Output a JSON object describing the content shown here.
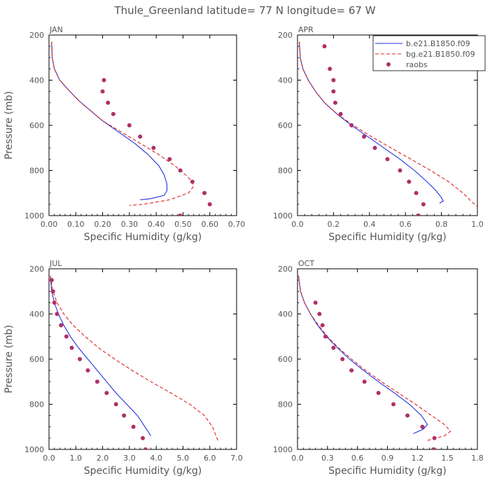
{
  "title": "Thule_Greenland  latitude= 77 N longitude= 67 W",
  "legend": {
    "entries": [
      {
        "label": "b.e21.B1850.f09",
        "color": "#2233dd",
        "style": "solid"
      },
      {
        "label": "bg.e21.B1850.f09",
        "color": "#dd2222",
        "style": "dashed"
      },
      {
        "label": "raobs",
        "color": "#b0306a",
        "style": "marker"
      }
    ]
  },
  "chart_data": [
    {
      "type": "line",
      "panel": "JAN",
      "xlabel": "Specific Humidity (g/kg)",
      "ylabel": "Pressure (mb)",
      "xlim": [
        0,
        0.7
      ],
      "ylim": [
        1000,
        200
      ],
      "xticks": [
        "0.00",
        "0.10",
        "0.20",
        "0.30",
        "0.40",
        "0.50",
        "0.60",
        "0.70"
      ],
      "xtick_values": [
        0,
        0.1,
        0.2,
        0.3,
        0.4,
        0.5,
        0.6,
        0.7
      ],
      "yticks": [
        "200",
        "400",
        "600",
        "800",
        "1000"
      ],
      "ytick_values": [
        200,
        400,
        600,
        800,
        1000
      ],
      "series": [
        {
          "name": "b.e21.B1850.f09",
          "x": [
            0.01,
            0.012,
            0.02,
            0.04,
            0.07,
            0.11,
            0.15,
            0.2,
            0.26,
            0.32,
            0.37,
            0.41,
            0.43,
            0.44,
            0.44,
            0.43,
            0.38,
            0.34
          ],
          "y": [
            230,
            300,
            350,
            400,
            440,
            490,
            530,
            580,
            630,
            680,
            730,
            780,
            820,
            860,
            890,
            910,
            925,
            930
          ]
        },
        {
          "name": "bg.e21.B1850.f09",
          "x": [
            0.01,
            0.012,
            0.02,
            0.04,
            0.07,
            0.11,
            0.15,
            0.2,
            0.27,
            0.34,
            0.41,
            0.47,
            0.51,
            0.535,
            0.54,
            0.52,
            0.45,
            0.35,
            0.3
          ],
          "y": [
            230,
            300,
            350,
            400,
            440,
            490,
            530,
            580,
            630,
            680,
            730,
            780,
            820,
            850,
            870,
            900,
            930,
            950,
            955
          ]
        },
        {
          "name": "raobs",
          "x": [
            0.205,
            0.2,
            0.22,
            0.24,
            0.3,
            0.34,
            0.39,
            0.45,
            0.49,
            0.535,
            0.58,
            0.6,
            0.49
          ],
          "y": [
            400,
            450,
            500,
            550,
            600,
            650,
            700,
            750,
            800,
            850,
            900,
            950,
            1000
          ]
        }
      ]
    },
    {
      "type": "line",
      "panel": "APR",
      "xlabel": "Specific Humidity (g/kg)",
      "ylabel": "",
      "xlim": [
        0,
        1.0
      ],
      "ylim": [
        1000,
        200
      ],
      "xticks": [
        "0.0",
        "0.2",
        "0.4",
        "0.6",
        "0.8",
        "1.0"
      ],
      "xtick_values": [
        0,
        0.2,
        0.4,
        0.6,
        0.8,
        1.0
      ],
      "yticks": [
        "200",
        "400",
        "600",
        "800",
        "1000"
      ],
      "ytick_values": [
        200,
        400,
        600,
        800,
        1000
      ],
      "series": [
        {
          "name": "b.e21.B1850.f09",
          "x": [
            0.01,
            0.015,
            0.03,
            0.06,
            0.1,
            0.15,
            0.22,
            0.3,
            0.39,
            0.48,
            0.57,
            0.65,
            0.72,
            0.77,
            0.8,
            0.81,
            0.79
          ],
          "y": [
            230,
            300,
            350,
            400,
            450,
            500,
            550,
            600,
            650,
            700,
            750,
            800,
            850,
            890,
            920,
            935,
            945
          ]
        },
        {
          "name": "bg.e21.B1850.f09",
          "x": [
            0.01,
            0.015,
            0.03,
            0.06,
            0.1,
            0.15,
            0.22,
            0.31,
            0.41,
            0.52,
            0.63,
            0.74,
            0.84,
            0.92,
            0.97,
            1.0
          ],
          "y": [
            230,
            300,
            350,
            400,
            450,
            500,
            550,
            600,
            650,
            700,
            750,
            800,
            850,
            900,
            940,
            960
          ]
        },
        {
          "name": "raobs",
          "x": [
            0.15,
            0.18,
            0.2,
            0.2,
            0.21,
            0.24,
            0.3,
            0.37,
            0.43,
            0.5,
            0.57,
            0.62,
            0.66,
            0.7,
            0.67
          ],
          "y": [
            250,
            350,
            400,
            450,
            500,
            550,
            600,
            650,
            700,
            750,
            800,
            850,
            900,
            950,
            1000
          ]
        }
      ]
    },
    {
      "type": "line",
      "panel": "JUL",
      "xlabel": "Specific Humidity (g/kg)",
      "ylabel": "Pressure (mb)",
      "xlim": [
        0,
        7.0
      ],
      "ylim": [
        1000,
        200
      ],
      "xticks": [
        "0.0",
        "1.0",
        "2.0",
        "3.0",
        "4.0",
        "5.0",
        "6.0",
        "7.0"
      ],
      "xtick_values": [
        0,
        1,
        2,
        3,
        4,
        5,
        6,
        7
      ],
      "yticks": [
        "200",
        "400",
        "600",
        "800",
        "1000"
      ],
      "ytick_values": [
        200,
        400,
        600,
        800,
        1000
      ],
      "series": [
        {
          "name": "b.e21.B1850.f09",
          "x": [
            0.05,
            0.1,
            0.2,
            0.35,
            0.55,
            0.8,
            1.1,
            1.45,
            1.8,
            2.15,
            2.5,
            2.9,
            3.3,
            3.8
          ],
          "y": [
            230,
            300,
            350,
            400,
            450,
            500,
            550,
            600,
            650,
            700,
            750,
            800,
            850,
            940
          ]
        },
        {
          "name": "bg.e21.B1850.f09",
          "x": [
            0.05,
            0.15,
            0.3,
            0.55,
            0.9,
            1.35,
            1.85,
            2.45,
            3.1,
            3.8,
            4.55,
            5.25,
            5.8,
            6.1,
            6.3
          ],
          "y": [
            230,
            300,
            350,
            400,
            450,
            500,
            550,
            600,
            650,
            700,
            750,
            800,
            850,
            900,
            960
          ]
        },
        {
          "name": "raobs",
          "x": [
            0.1,
            0.15,
            0.2,
            0.3,
            0.45,
            0.65,
            0.85,
            1.15,
            1.45,
            1.8,
            2.15,
            2.5,
            2.8,
            3.15,
            3.5,
            3.6
          ],
          "y": [
            250,
            300,
            350,
            400,
            450,
            500,
            550,
            600,
            650,
            700,
            750,
            800,
            850,
            900,
            950,
            1000
          ]
        }
      ]
    },
    {
      "type": "line",
      "panel": "OCT",
      "xlabel": "Specific Humidity (g/kg)",
      "ylabel": "",
      "xlim": [
        0,
        1.8
      ],
      "ylim": [
        1000,
        200
      ],
      "xticks": [
        "0.0",
        "0.3",
        "0.6",
        "0.9",
        "1.2",
        "1.5",
        "1.8"
      ],
      "xtick_values": [
        0,
        0.3,
        0.6,
        0.9,
        1.2,
        1.5,
        1.8
      ],
      "yticks": [
        "200",
        "400",
        "600",
        "800",
        "1000"
      ],
      "ytick_values": [
        200,
        400,
        600,
        800,
        1000
      ],
      "series": [
        {
          "name": "b.e21.B1850.f09",
          "x": [
            0.01,
            0.03,
            0.07,
            0.13,
            0.2,
            0.29,
            0.4,
            0.52,
            0.66,
            0.81,
            0.97,
            1.12,
            1.24,
            1.3,
            1.26,
            1.16
          ],
          "y": [
            230,
            300,
            350,
            400,
            450,
            500,
            550,
            600,
            650,
            700,
            750,
            800,
            850,
            890,
            910,
            930
          ]
        },
        {
          "name": "bg.e21.B1850.f09",
          "x": [
            0.01,
            0.03,
            0.07,
            0.13,
            0.21,
            0.3,
            0.41,
            0.54,
            0.68,
            0.84,
            1.01,
            1.18,
            1.34,
            1.47,
            1.53,
            1.47,
            1.35,
            1.3
          ],
          "y": [
            230,
            300,
            350,
            400,
            450,
            500,
            550,
            600,
            650,
            700,
            750,
            800,
            850,
            890,
            920,
            940,
            955,
            960
          ]
        },
        {
          "name": "raobs",
          "x": [
            0.18,
            0.22,
            0.25,
            0.28,
            0.36,
            0.45,
            0.54,
            0.67,
            0.81,
            0.96,
            1.1,
            1.25,
            1.37,
            1.36
          ],
          "y": [
            350,
            400,
            450,
            500,
            550,
            600,
            650,
            700,
            750,
            800,
            850,
            900,
            950,
            1000
          ]
        }
      ]
    }
  ]
}
